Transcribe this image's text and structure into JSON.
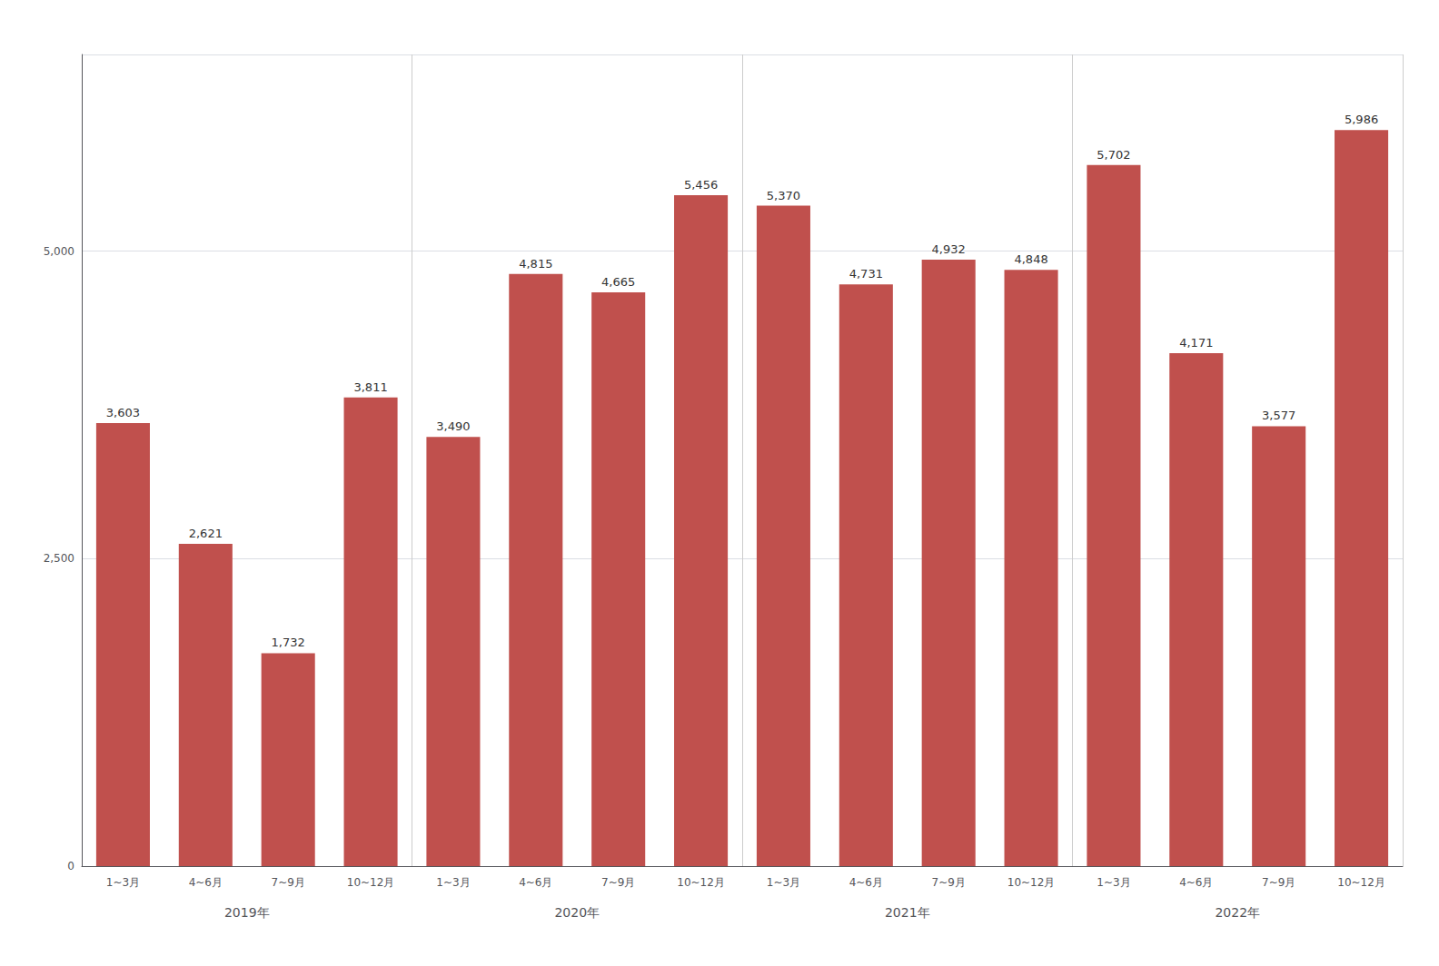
{
  "chart_data": {
    "type": "bar",
    "categories": [
      "1~3月",
      "4~6月",
      "7~9月",
      "10~12月",
      "1~3月",
      "4~6月",
      "7~9月",
      "10~12月",
      "1~3月",
      "4~6月",
      "7~9月",
      "10~12月",
      "1~3月",
      "4~6月",
      "7~9月",
      "10~12月"
    ],
    "values": [
      3603,
      2621,
      1732,
      3811,
      3490,
      4815,
      4665,
      5456,
      5370,
      4731,
      4932,
      4848,
      5702,
      4171,
      3577,
      5986
    ],
    "value_labels": [
      "3,603",
      "2,621",
      "1,732",
      "3,811",
      "3,490",
      "4,815",
      "4,665",
      "5,456",
      "5,370",
      "4,731",
      "4,932",
      "4,848",
      "5,702",
      "4,171",
      "3,577",
      "5,986"
    ],
    "data_labels": true,
    "color": "#c0504d",
    "ylim": [
      0,
      6600
    ],
    "yticks": [
      0,
      {
        "value": 2500,
        "label": "2,500"
      },
      {
        "value": 5000,
        "label": "5,000"
      }
    ],
    "grid": true,
    "annotations": [
      "2019年",
      "2020年",
      "2021年",
      "2022年"
    ]
  }
}
